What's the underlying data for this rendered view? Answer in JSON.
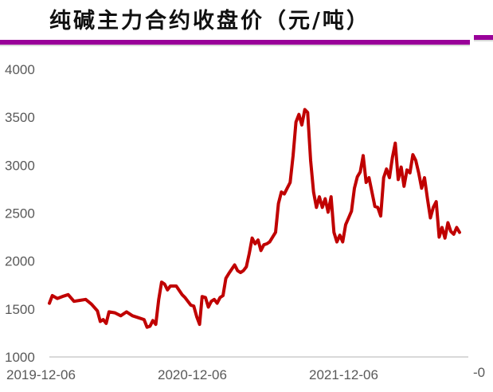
{
  "header": {
    "title": "纯碱主力合约收盘价（元/吨）",
    "accent_color": "#990099"
  },
  "chart_data": {
    "type": "line",
    "title": "纯碱主力合约收盘价（元/吨）",
    "xlabel": "",
    "ylabel": "",
    "ylim": [
      1000,
      4000
    ],
    "yticks": [
      "4000",
      "3500",
      "3000",
      "2500",
      "2000",
      "1500",
      "1000"
    ],
    "xticks": [
      "2019-12-06",
      "2020-12-06",
      "2021-12-06",
      "-0"
    ],
    "grid": false,
    "legend": null,
    "series": [
      {
        "name": "纯碱主力合约收盘价",
        "color": "#c00000",
        "points": [
          [
            "2019-12-06",
            1560
          ],
          [
            "2019-12-13",
            1640
          ],
          [
            "2019-12-25",
            1610
          ],
          [
            "2020-01-06",
            1630
          ],
          [
            "2020-01-20",
            1650
          ],
          [
            "2020-02-03",
            1580
          ],
          [
            "2020-02-17",
            1590
          ],
          [
            "2020-03-02",
            1600
          ],
          [
            "2020-03-16",
            1550
          ],
          [
            "2020-03-30",
            1480
          ],
          [
            "2020-04-06",
            1370
          ],
          [
            "2020-04-13",
            1390
          ],
          [
            "2020-04-20",
            1350
          ],
          [
            "2020-04-27",
            1470
          ],
          [
            "2020-05-11",
            1460
          ],
          [
            "2020-05-25",
            1430
          ],
          [
            "2020-06-08",
            1470
          ],
          [
            "2020-06-22",
            1430
          ],
          [
            "2020-07-06",
            1410
          ],
          [
            "2020-07-20",
            1390
          ],
          [
            "2020-07-27",
            1310
          ],
          [
            "2020-08-03",
            1320
          ],
          [
            "2020-08-10",
            1380
          ],
          [
            "2020-08-17",
            1340
          ],
          [
            "2020-08-24",
            1600
          ],
          [
            "2020-08-31",
            1780
          ],
          [
            "2020-09-07",
            1760
          ],
          [
            "2020-09-14",
            1700
          ],
          [
            "2020-09-21",
            1740
          ],
          [
            "2020-10-05",
            1740
          ],
          [
            "2020-10-19",
            1650
          ],
          [
            "2020-10-26",
            1620
          ],
          [
            "2020-11-02",
            1580
          ],
          [
            "2020-11-09",
            1540
          ],
          [
            "2020-11-16",
            1530
          ],
          [
            "2020-11-23",
            1420
          ],
          [
            "2020-11-30",
            1340
          ],
          [
            "2020-12-06",
            1630
          ],
          [
            "2020-12-14",
            1620
          ],
          [
            "2020-12-21",
            1520
          ],
          [
            "2020-12-28",
            1580
          ],
          [
            "2021-01-04",
            1600
          ],
          [
            "2021-01-11",
            1560
          ],
          [
            "2021-01-18",
            1620
          ],
          [
            "2021-01-25",
            1640
          ],
          [
            "2021-02-01",
            1820
          ],
          [
            "2021-02-08",
            1870
          ],
          [
            "2021-02-22",
            1960
          ],
          [
            "2021-03-01",
            1900
          ],
          [
            "2021-03-08",
            1880
          ],
          [
            "2021-03-15",
            1900
          ],
          [
            "2021-03-22",
            1940
          ],
          [
            "2021-03-29",
            2080
          ],
          [
            "2021-04-05",
            2240
          ],
          [
            "2021-04-12",
            2180
          ],
          [
            "2021-04-19",
            2220
          ],
          [
            "2021-04-26",
            2110
          ],
          [
            "2021-05-03",
            2170
          ],
          [
            "2021-05-10",
            2180
          ],
          [
            "2021-05-17",
            2200
          ],
          [
            "2021-05-24",
            2250
          ],
          [
            "2021-05-31",
            2300
          ],
          [
            "2021-06-07",
            2600
          ],
          [
            "2021-06-14",
            2720
          ],
          [
            "2021-06-21",
            2700
          ],
          [
            "2021-06-28",
            2760
          ],
          [
            "2021-07-05",
            2820
          ],
          [
            "2021-07-12",
            3100
          ],
          [
            "2021-07-19",
            3450
          ],
          [
            "2021-07-26",
            3530
          ],
          [
            "2021-08-02",
            3420
          ],
          [
            "2021-08-09",
            3580
          ],
          [
            "2021-08-16",
            3550
          ],
          [
            "2021-08-23",
            3050
          ],
          [
            "2021-08-30",
            2720
          ],
          [
            "2021-09-06",
            2560
          ],
          [
            "2021-09-13",
            2670
          ],
          [
            "2021-09-20",
            2560
          ],
          [
            "2021-09-27",
            2650
          ],
          [
            "2021-10-04",
            2510
          ],
          [
            "2021-10-11",
            2670
          ],
          [
            "2021-10-18",
            2300
          ],
          [
            "2021-10-25",
            2200
          ],
          [
            "2021-11-01",
            2270
          ],
          [
            "2021-11-08",
            2200
          ],
          [
            "2021-11-15",
            2380
          ],
          [
            "2021-11-22",
            2450
          ],
          [
            "2021-11-29",
            2520
          ],
          [
            "2021-12-06",
            2760
          ],
          [
            "2021-12-13",
            2880
          ],
          [
            "2021-12-20",
            2930
          ],
          [
            "2021-12-27",
            3100
          ],
          [
            "2022-01-03",
            2820
          ],
          [
            "2022-01-10",
            2870
          ],
          [
            "2022-01-17",
            2720
          ],
          [
            "2022-01-24",
            2570
          ],
          [
            "2022-01-31",
            2560
          ],
          [
            "2022-02-07",
            2470
          ],
          [
            "2022-02-14",
            2870
          ],
          [
            "2022-02-21",
            2960
          ],
          [
            "2022-02-28",
            2870
          ],
          [
            "2022-03-07",
            3080
          ],
          [
            "2022-03-14",
            3230
          ],
          [
            "2022-03-21",
            2850
          ],
          [
            "2022-03-28",
            2980
          ],
          [
            "2022-04-04",
            2780
          ],
          [
            "2022-04-11",
            2950
          ],
          [
            "2022-04-18",
            2920
          ],
          [
            "2022-04-25",
            3110
          ],
          [
            "2022-05-02",
            3050
          ],
          [
            "2022-05-09",
            2920
          ],
          [
            "2022-05-16",
            2760
          ],
          [
            "2022-05-23",
            2870
          ],
          [
            "2022-05-30",
            2650
          ],
          [
            "2022-06-06",
            2450
          ],
          [
            "2022-06-13",
            2560
          ],
          [
            "2022-06-20",
            2620
          ],
          [
            "2022-06-27",
            2250
          ],
          [
            "2022-07-04",
            2350
          ],
          [
            "2022-07-11",
            2240
          ],
          [
            "2022-07-18",
            2400
          ],
          [
            "2022-07-25",
            2310
          ],
          [
            "2022-08-01",
            2280
          ],
          [
            "2022-08-08",
            2350
          ],
          [
            "2022-08-15",
            2300
          ]
        ]
      }
    ]
  }
}
